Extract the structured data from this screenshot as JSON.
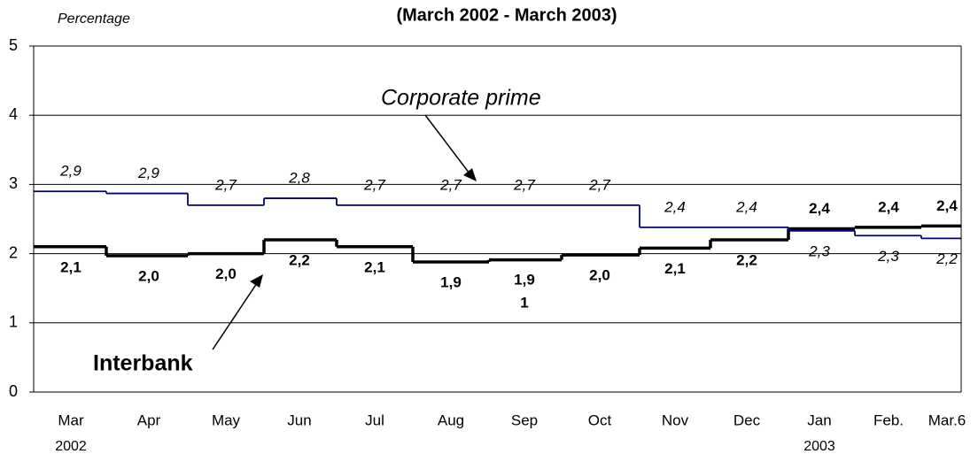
{
  "chart_data": {
    "type": "step-line",
    "title": "(March 2002 - March 2003)",
    "y_label": "Percentage",
    "categories": [
      "Mar",
      "Apr",
      "May",
      "Jun",
      "Jul",
      "Aug",
      "Sep",
      "Oct",
      "Nov",
      "Dec",
      "Jan",
      "Feb.",
      "Mar.6"
    ],
    "sublabels": [
      "2002",
      null,
      null,
      null,
      null,
      null,
      null,
      null,
      null,
      null,
      "2003",
      null,
      null
    ],
    "ylim": [
      0,
      5
    ],
    "yticks": [
      0,
      1,
      2,
      3,
      4,
      5
    ],
    "grid": true,
    "series": [
      {
        "name": "Corporate prime",
        "color": "#000080",
        "values": [
          2.9,
          2.87,
          2.7,
          2.8,
          2.7,
          2.7,
          2.7,
          2.7,
          2.38,
          2.38,
          2.33,
          2.26,
          2.22
        ],
        "value_labels": [
          "2,9",
          "2,9",
          "2,7",
          "2,8",
          "2,7",
          "2,7",
          "2,7",
          "2,7",
          "2,4",
          "2,4",
          "2,3",
          "2,3",
          "2,2"
        ]
      },
      {
        "name": "Interbank",
        "color": "#000000",
        "values": [
          2.1,
          1.97,
          2.0,
          2.2,
          2.1,
          1.88,
          1.91,
          1.98,
          2.08,
          2.2,
          2.36,
          2.38,
          2.4
        ],
        "value_labels": [
          "2,1",
          "2,0",
          "2,0",
          "2,2",
          "2,1",
          "1,9",
          "1,91",
          "2,0",
          "2,1",
          "2,2",
          "2,4",
          "2,4",
          "2,4"
        ]
      }
    ]
  }
}
